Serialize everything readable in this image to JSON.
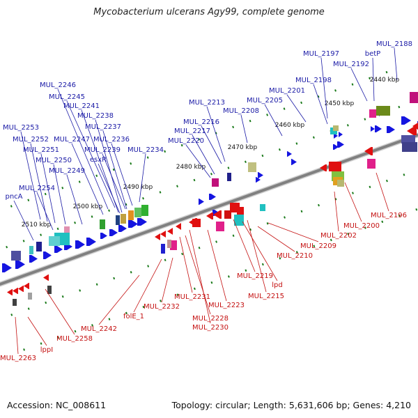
{
  "title": "Mycobacterium ulcerans Agy99, complete genome",
  "footer": {
    "accession": "Accession: NC_008611",
    "summary": "Topology: circular; Length: 5,631,606 bp; Genes: 4,210"
  },
  "colors": {
    "forward_gene": "#1515e0",
    "reverse_gene": "#e01010",
    "backbone": "#808080",
    "tick": "#1a7a1a",
    "label_forward": "#1a1aa6",
    "label_reverse": "#c41010",
    "scale_text": "#111111"
  },
  "scale_labels": [
    "2440 kbp",
    "2450 kbp",
    "2460 kbp",
    "2470 kbp",
    "2480 kbp",
    "2490 kbp",
    "2500 kbp",
    "2510 kbp"
  ],
  "forward_labels": [
    "MUL_2188",
    "MUL_2197",
    "betP",
    "MUL_2192",
    "MUL_2198",
    "MUL_2201",
    "MUL_2205",
    "MUL_2208",
    "MUL_2213",
    "MUL_2216",
    "MUL_2217",
    "MUL_2220",
    "MUL_2246",
    "MUL_2245",
    "MUL_2241",
    "MUL_2238",
    "MUL_2237",
    "MUL_2253",
    "MUL_2252",
    "MUL_2247",
    "MUL_2236",
    "MUL_2251",
    "MUL_2239",
    "esxR",
    "MUL_2234",
    "MUL_2250",
    "MUL_2249",
    "MUL_2254",
    "pncA"
  ],
  "reverse_labels": [
    "MUL_2196",
    "MUL_2200",
    "MUL_2202",
    "MUL_2209",
    "MUL_2210",
    "MUL_2219",
    "lpd",
    "MUL_2215",
    "MUL_2223",
    "MUL_2231",
    "MUL_2228",
    "MUL_2230",
    "MUL_2232",
    "folE_1",
    "MUL_2242",
    "MUL_2258",
    "lppI",
    "MUL_2263"
  ]
}
